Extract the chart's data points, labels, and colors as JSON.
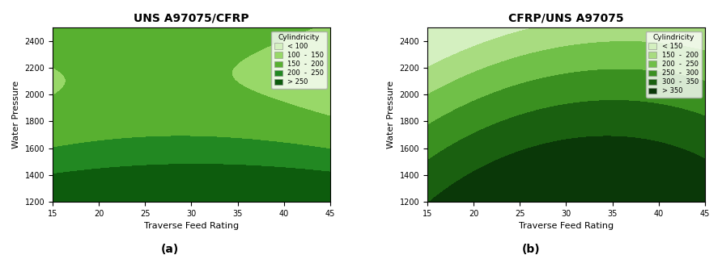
{
  "plot_a": {
    "title": "UNS A97075/CFRP",
    "xlabel": "Traverse Feed Rating",
    "ylabel": "Water Pressure",
    "x_range": [
      15,
      45
    ],
    "y_range": [
      1200,
      2500
    ],
    "xticks": [
      15,
      20,
      25,
      30,
      35,
      40,
      45
    ],
    "yticks": [
      1200,
      1400,
      1600,
      1800,
      2000,
      2200,
      2400
    ],
    "legend_title": "Cylindricity",
    "legend_labels": [
      "< 100",
      "100  -  150",
      "150  -  200",
      "200  -  250",
      "> 250"
    ],
    "colors": [
      "#d4f0c0",
      "#98d868",
      "#58b030",
      "#228822",
      "#0d5c0d"
    ],
    "levels": [
      0,
      100,
      150,
      200,
      250,
      600
    ],
    "label_a": "(a)"
  },
  "plot_b": {
    "title": "CFRP/UNS A97075",
    "xlabel": "Traverse Feed Rating",
    "ylabel": "Water Pressure",
    "x_range": [
      15,
      45
    ],
    "y_range": [
      1200,
      2500
    ],
    "xticks": [
      15,
      20,
      25,
      30,
      35,
      40,
      45
    ],
    "yticks": [
      1200,
      1400,
      1600,
      1800,
      2000,
      2200,
      2400
    ],
    "legend_title": "Cylindricity",
    "legend_labels": [
      "< 150",
      "150  -  200",
      "200  -  250",
      "250  -  300",
      "300  -  350",
      "> 350"
    ],
    "colors": [
      "#d4f0c0",
      "#a8dc80",
      "#70c048",
      "#3a9020",
      "#1a6010",
      "#0a3808"
    ],
    "levels": [
      0,
      150,
      200,
      250,
      300,
      350,
      600
    ],
    "label_b": "(b)"
  }
}
